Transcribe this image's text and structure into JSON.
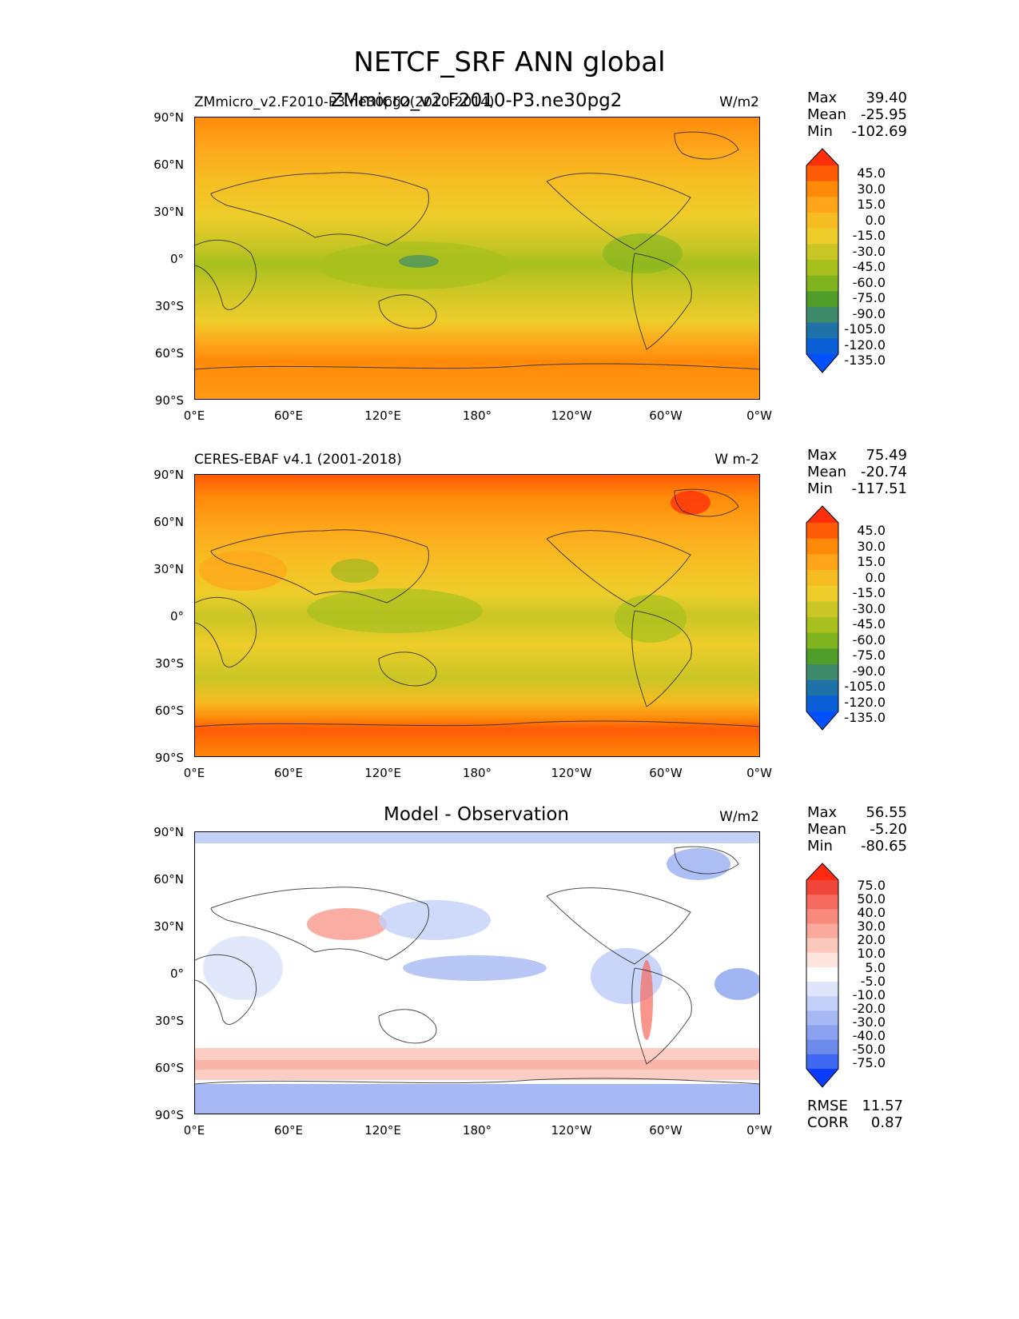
{
  "suptitle": "NETCF_SRF ANN global",
  "chart_data": [
    {
      "type": "heatmap",
      "subtitle_left": "ZMmicro_v2.F2010-P3.ne30pg2(2010-2014)",
      "subtitle_center": "ZMmicro_v2.F2010-P3.ne30pg2",
      "units": "W/m2",
      "y_ticks": [
        "90°N",
        "60°N",
        "30°N",
        "0°",
        "30°S",
        "60°S",
        "90°S"
      ],
      "x_ticks": [
        "0°E",
        "60°E",
        "120°E",
        "180°",
        "120°W",
        "60°W",
        "0°W"
      ],
      "stats": [
        {
          "label": "Max",
          "value": "39.40"
        },
        {
          "label": "Mean",
          "value": "-25.95"
        },
        {
          "label": "Min",
          "value": "-102.69"
        }
      ],
      "colorbar_levels": [
        "45.0",
        "30.0",
        "15.0",
        "0.0",
        "-15.0",
        "-30.0",
        "-45.0",
        "-60.0",
        "-75.0",
        "-90.0",
        "-105.0",
        "-120.0",
        "-135.0"
      ],
      "colorbar_colors": [
        "#ff2f0a",
        "#ff5a05",
        "#ff8a0a",
        "#ffa51a",
        "#f6bd23",
        "#eecd2a",
        "#c9c625",
        "#a8c01e",
        "#7fb41f",
        "#4f9e2a",
        "#3d8b6a",
        "#1f72a8",
        "#0a5fd6",
        "#0050ff"
      ],
      "extend": "both"
    },
    {
      "type": "heatmap",
      "subtitle_left": "CERES-EBAF v4.1 (2001-2018)",
      "subtitle_center": "",
      "units": "W m-2",
      "y_ticks": [
        "90°N",
        "60°N",
        "30°N",
        "0°",
        "30°S",
        "60°S",
        "90°S"
      ],
      "x_ticks": [
        "0°E",
        "60°E",
        "120°E",
        "180°",
        "120°W",
        "60°W",
        "0°W"
      ],
      "stats": [
        {
          "label": "Max",
          "value": "75.49"
        },
        {
          "label": "Mean",
          "value": "-20.74"
        },
        {
          "label": "Min",
          "value": "-117.51"
        }
      ],
      "colorbar_levels": [
        "45.0",
        "30.0",
        "15.0",
        "0.0",
        "-15.0",
        "-30.0",
        "-45.0",
        "-60.0",
        "-75.0",
        "-90.0",
        "-105.0",
        "-120.0",
        "-135.0"
      ],
      "colorbar_colors": [
        "#ff2f0a",
        "#ff5a05",
        "#ff8a0a",
        "#ffa51a",
        "#f6bd23",
        "#eecd2a",
        "#c9c625",
        "#a8c01e",
        "#7fb41f",
        "#4f9e2a",
        "#3d8b6a",
        "#1f72a8",
        "#0a5fd6",
        "#0050ff"
      ],
      "extend": "both"
    },
    {
      "type": "heatmap",
      "subtitle_left": "",
      "subtitle_center": "Model - Observation",
      "units": "W/m2",
      "y_ticks": [
        "90°N",
        "60°N",
        "30°N",
        "0°",
        "30°S",
        "60°S",
        "90°S"
      ],
      "x_ticks": [
        "0°E",
        "60°E",
        "120°E",
        "180°",
        "120°W",
        "60°W",
        "0°W"
      ],
      "stats": [
        {
          "label": "Max",
          "value": "56.55"
        },
        {
          "label": "Mean",
          "value": "-5.20"
        },
        {
          "label": "Min",
          "value": "-80.65"
        }
      ],
      "colorbar_levels": [
        "75.0",
        "50.0",
        "40.0",
        "30.0",
        "20.0",
        "10.0",
        "5.0",
        "-5.0",
        "-10.0",
        "-20.0",
        "-30.0",
        "-40.0",
        "-50.0",
        "-75.0"
      ],
      "colorbar_colors": [
        "#ff2a10",
        "#f0463a",
        "#f56a5c",
        "#f88a7c",
        "#f9aa9c",
        "#fbc8bc",
        "#fde4dc",
        "#ffffff",
        "#dfe6fb",
        "#c3d0f8",
        "#a6b9f4",
        "#8aa2ef",
        "#6d8bea",
        "#3f68f2",
        "#0a3cff"
      ],
      "extend": "both",
      "extra_stats": [
        {
          "label": "RMSE",
          "value": "11.57"
        },
        {
          "label": "CORR",
          "value": "0.87"
        }
      ]
    }
  ]
}
